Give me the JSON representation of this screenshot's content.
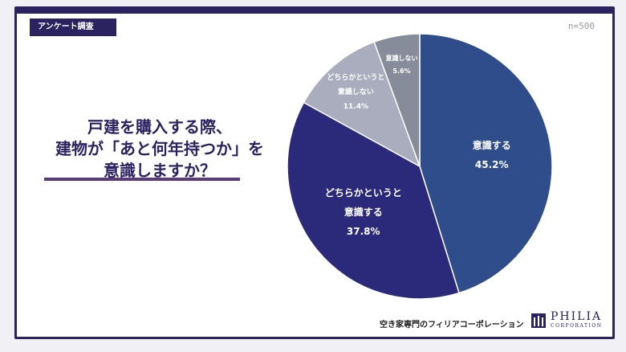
{
  "tag_label": "アンケート調査",
  "sample_size": "n=500",
  "question_lines": [
    "戸建を購入する際、",
    "建物が「あと何年持つか」を",
    "意識しますか？"
  ],
  "footer_text": "空き家専門のフィリアコーポレーション",
  "logo": {
    "name": "PHILIA",
    "sub": "CORPORATION"
  },
  "colors": {
    "frame": "#2b2260",
    "accent_line": "#5d3a7a"
  },
  "chart_data": {
    "type": "pie",
    "title": "",
    "legend": "none",
    "start": "12 o'clock, clockwise",
    "slices": [
      {
        "label_lines": [
          "意識する"
        ],
        "value": 45.2,
        "display": "45.2%",
        "color": "#2e4d8a",
        "text_color": "#ffffff"
      },
      {
        "label_lines": [
          "どちらかというと",
          "意識する"
        ],
        "value": 37.8,
        "display": "37.8%",
        "color": "#2b2a7a",
        "text_color": "#ffffff"
      },
      {
        "label_lines": [
          "どちらかというと",
          "意識しない"
        ],
        "value": 11.4,
        "display": "11.4%",
        "color": "#a9adbd",
        "text_color": "#ffffff"
      },
      {
        "label_lines": [
          "意識しない"
        ],
        "value": 5.6,
        "display": "5.6%",
        "color": "#878c9b",
        "text_color": "#ffffff"
      }
    ]
  }
}
